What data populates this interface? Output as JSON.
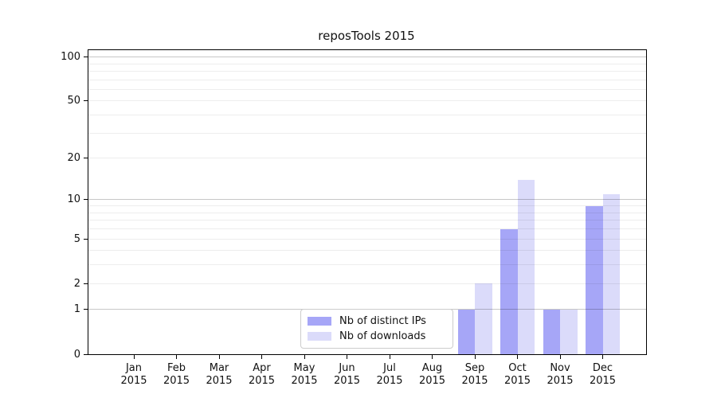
{
  "chart_data": {
    "type": "bar",
    "title": "reposTools 2015",
    "x_categories": [
      {
        "month": "Jan",
        "year": "2015"
      },
      {
        "month": "Feb",
        "year": "2015"
      },
      {
        "month": "Mar",
        "year": "2015"
      },
      {
        "month": "Apr",
        "year": "2015"
      },
      {
        "month": "May",
        "year": "2015"
      },
      {
        "month": "Jun",
        "year": "2015"
      },
      {
        "month": "Jul",
        "year": "2015"
      },
      {
        "month": "Aug",
        "year": "2015"
      },
      {
        "month": "Sep",
        "year": "2015"
      },
      {
        "month": "Oct",
        "year": "2015"
      },
      {
        "month": "Nov",
        "year": "2015"
      },
      {
        "month": "Dec",
        "year": "2015"
      }
    ],
    "series": [
      {
        "name": "Nb of distinct IPs",
        "color": "#a6a6f7",
        "values": [
          0,
          0,
          0,
          0,
          0,
          0,
          0,
          0,
          1,
          6,
          1,
          9
        ]
      },
      {
        "name": "Nb of downloads",
        "color": "#dbdbfa",
        "values": [
          0,
          0,
          0,
          0,
          0,
          0,
          0,
          0,
          2,
          14,
          1,
          11
        ]
      }
    ],
    "y_axis": {
      "ticks": [
        0,
        1,
        2,
        5,
        10,
        20,
        50,
        100
      ],
      "scale": "log10(1+x)",
      "range_top": 111
    },
    "grid": {
      "major": [
        1,
        10,
        100
      ],
      "minor": [
        2,
        3,
        4,
        5,
        6,
        7,
        8,
        9,
        20,
        30,
        40,
        50,
        60,
        70,
        80,
        90
      ]
    },
    "legend": {
      "position": "lower-center"
    }
  }
}
